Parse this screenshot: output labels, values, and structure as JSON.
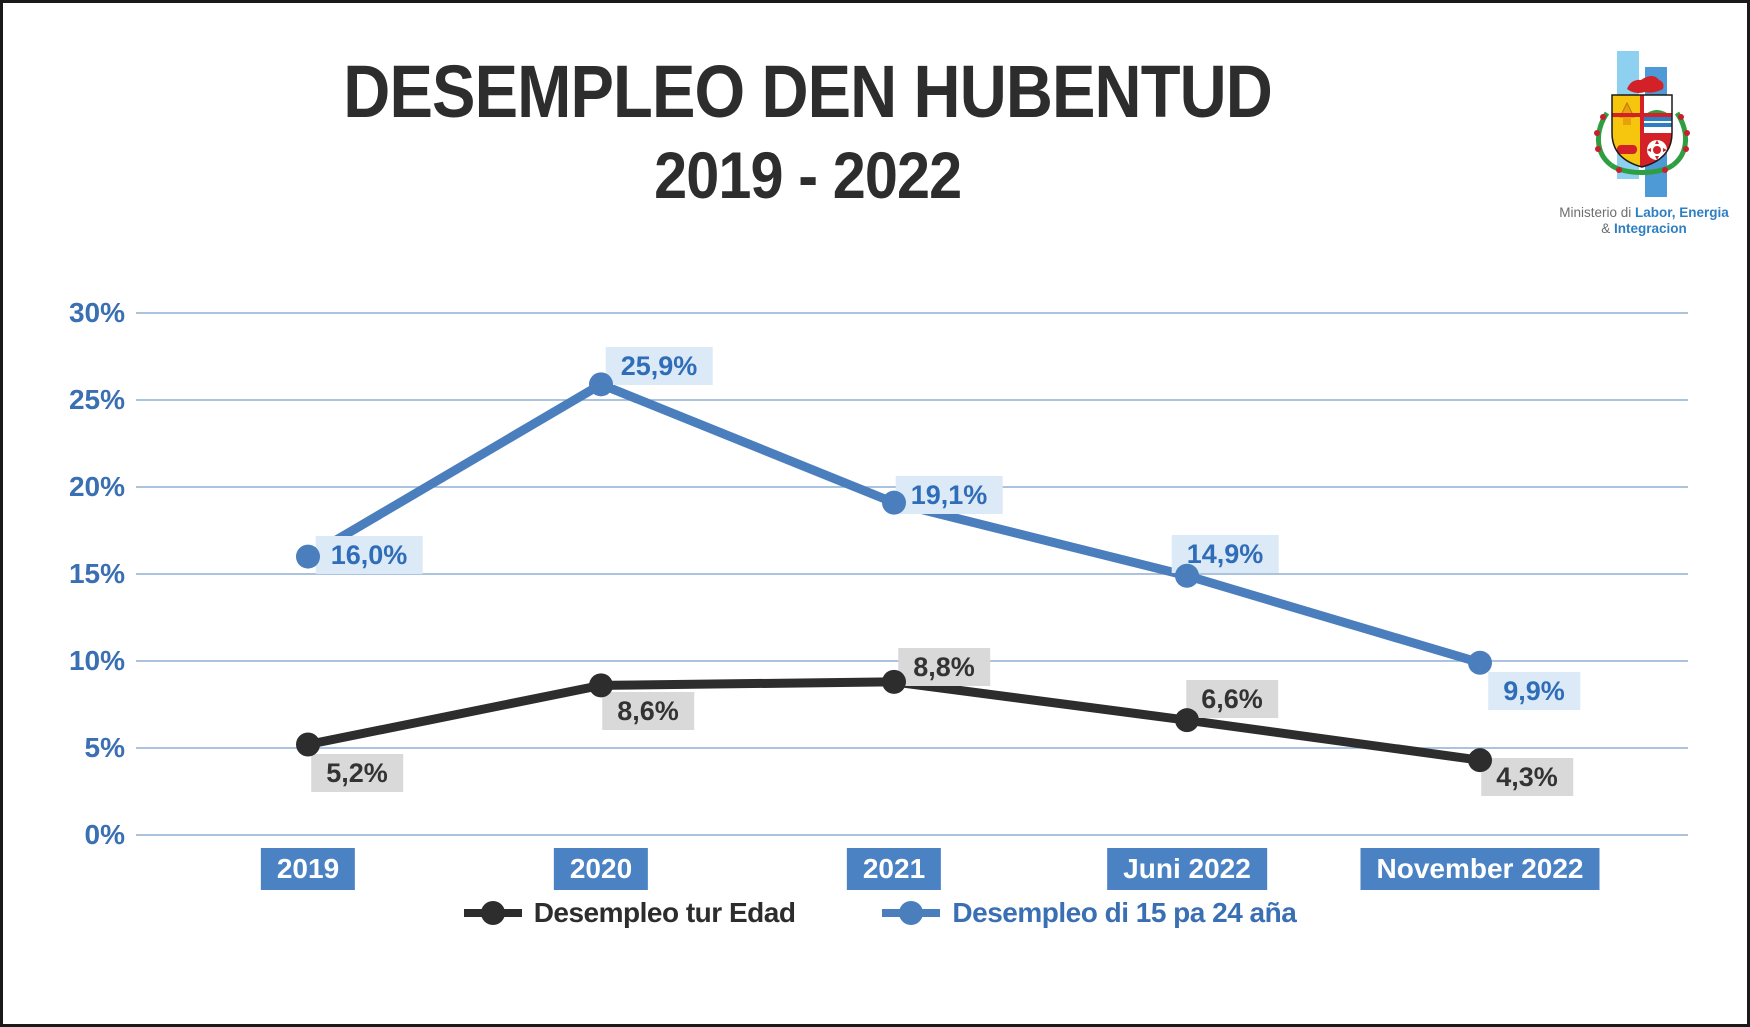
{
  "header": {
    "title_line1": "DESEMPLEO DEN HUBENTUD",
    "title_line2": "2019 - 2022"
  },
  "logo": {
    "line1_prefix": "Ministerio di ",
    "line1_bold": "Labor, Energia",
    "line2_prefix": "& ",
    "line2_bold": "Integracion",
    "bar_light_color": "#8ed0ef",
    "bar_dark_color": "#4e9ad6"
  },
  "colors": {
    "accent_blue": "#4a7ebd",
    "tick_text_blue": "#3a6fb3",
    "xbox_blue": "#4a82c4",
    "gridline_blue": "#8fafd4",
    "series_black": "#2d2d2d",
    "label_bg_gray": "#d9d9d9",
    "label_bg_lightblue": "#dce9f6"
  },
  "chart_data": {
    "type": "line",
    "title": "DESEMPLEO DEN HUBENTUD 2019 - 2022",
    "categories": [
      "2019",
      "2020",
      "2021",
      "Juni 2022",
      "November 2022"
    ],
    "series": [
      {
        "name": "Desempleo tur Edad",
        "color": "#2d2d2d",
        "values": [
          5.2,
          8.6,
          8.8,
          6.6,
          4.3
        ],
        "point_labels": [
          "5,2%",
          "8,6%",
          "8,8%",
          "6,6%",
          "4,3%"
        ],
        "label_bg": "#d9d9d9",
        "label_text_color": "#333333",
        "label_offsets": [
          [
            49,
            28
          ],
          [
            47,
            26
          ],
          [
            50,
            -15
          ],
          [
            45,
            -21
          ],
          [
            47,
            17
          ]
        ]
      },
      {
        "name": "Desempleo di 15 pa 24 aña",
        "color": "#4a7ebd",
        "values": [
          16.0,
          25.9,
          19.1,
          14.9,
          9.9
        ],
        "point_labels": [
          "16,0%",
          "25,9%",
          "19,1%",
          "14,9%",
          "9,9%"
        ],
        "label_bg": "#dce9f6",
        "label_text_color": "#2f6db8",
        "label_offsets": [
          [
            61,
            -2
          ],
          [
            58,
            -18
          ],
          [
            55,
            -8
          ],
          [
            38,
            -22
          ],
          [
            54,
            28
          ]
        ]
      }
    ],
    "ylim": [
      0,
      30
    ],
    "yticks": [
      0,
      5,
      10,
      15,
      20,
      25,
      30
    ],
    "ytick_labels": [
      "0%",
      "5%",
      "10%",
      "15%",
      "20%",
      "25%",
      "30%"
    ],
    "grid": true,
    "legend_position": "bottom-center",
    "xlabel": "",
    "ylabel": ""
  }
}
